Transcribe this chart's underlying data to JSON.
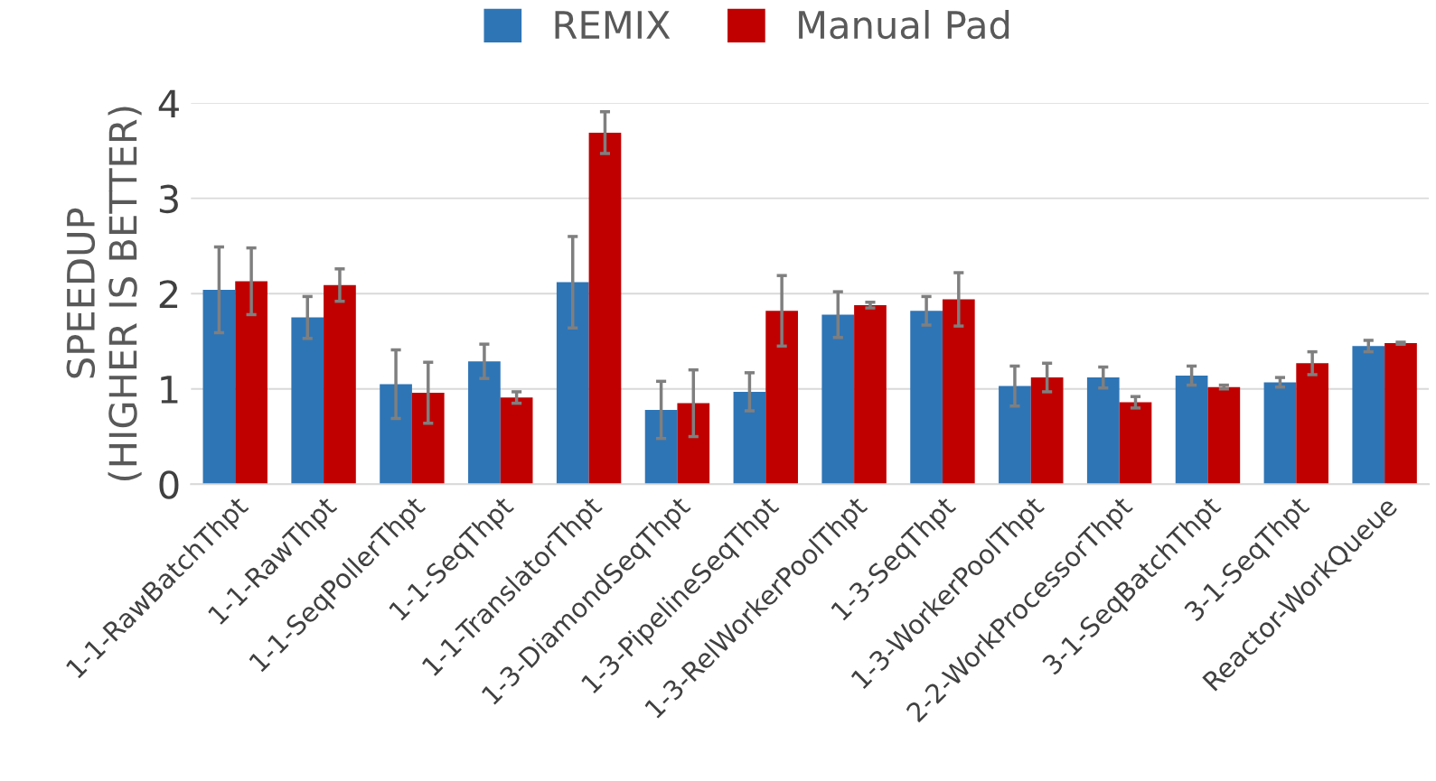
{
  "chart_data": {
    "type": "bar",
    "ylabel": "SPEEDUP\n(HIGHER IS BETTER)",
    "categories": [
      "1-1-RawBatchThpt",
      "1-1-RawThpt",
      "1-1-SeqPollerThpt",
      "1-1-SeqThpt",
      "1-1-TranslatorThpt",
      "1-3-DiamondSeqThpt",
      "1-3-PipelineSeqThpt",
      "1-3-RelWorkerPoolThpt",
      "1-3-SeqThpt",
      "1-3-WorkerPoolThpt",
      "2-2-WorkProcessorThpt",
      "3-1-SeqBatchThpt",
      "3-1-SeqThpt",
      "Reactor-WorkQueue"
    ],
    "series": [
      {
        "name": "REMIX",
        "color": "#2e75b6",
        "values": [
          2.04,
          1.75,
          1.05,
          1.29,
          2.12,
          0.78,
          0.97,
          1.78,
          1.82,
          1.03,
          1.12,
          1.14,
          1.07,
          1.45
        ],
        "errors": [
          0.45,
          0.22,
          0.36,
          0.18,
          0.48,
          0.3,
          0.2,
          0.24,
          0.15,
          0.21,
          0.11,
          0.1,
          0.05,
          0.06
        ]
      },
      {
        "name": "Manual Pad",
        "color": "#c00000",
        "values": [
          2.13,
          2.09,
          0.96,
          0.91,
          3.69,
          0.85,
          1.82,
          1.88,
          1.94,
          1.12,
          0.86,
          1.02,
          1.27,
          1.48
        ],
        "errors": [
          0.35,
          0.17,
          0.32,
          0.06,
          0.22,
          0.35,
          0.37,
          0.03,
          0.28,
          0.15,
          0.06,
          0.02,
          0.12,
          0.01
        ]
      }
    ],
    "ylim": [
      0,
      4
    ],
    "yticks": [
      0,
      1,
      2,
      3,
      4
    ],
    "grid": "y",
    "legend": "top"
  }
}
